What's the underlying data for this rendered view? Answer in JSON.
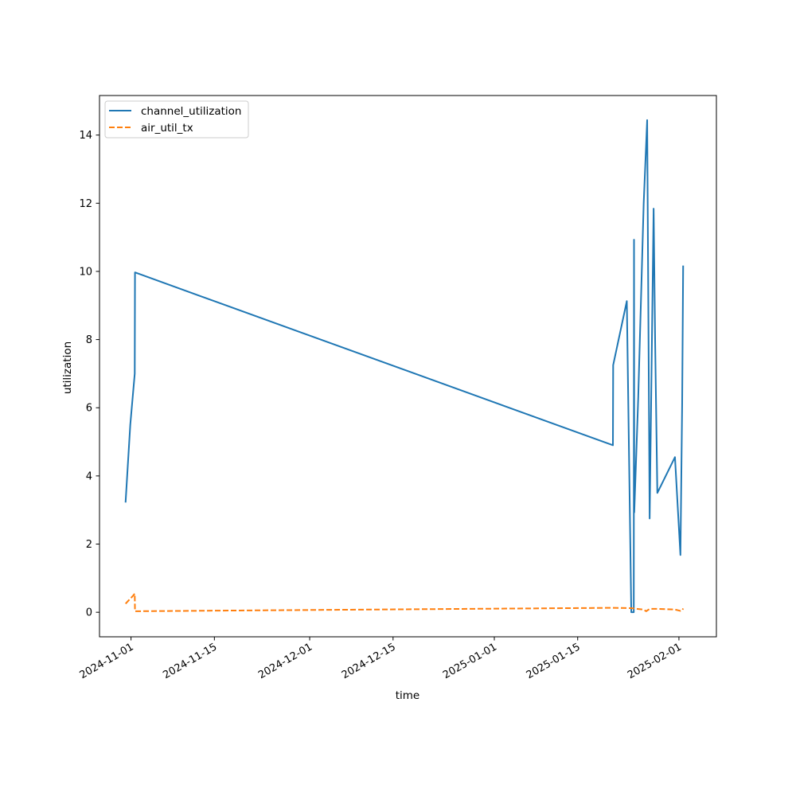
{
  "chart_data": {
    "type": "line",
    "title": "",
    "xlabel": "time",
    "ylabel": "utilization",
    "x_axis_type": "date",
    "xlim": [
      "2024-10-26T17:00",
      "2025-02-07T07:00"
    ],
    "ylim": [
      -0.72,
      15.16
    ],
    "x_ticks": [
      "2024-11-01",
      "2024-11-15",
      "2024-12-01",
      "2024-12-15",
      "2025-01-01",
      "2025-01-15",
      "2025-02-01"
    ],
    "x_tick_labels": [
      "2024-11-01",
      "2024-11-15",
      "2024-12-01",
      "2024-12-15",
      "2025-01-01",
      "2025-01-15",
      "2025-02-01"
    ],
    "y_ticks": [
      0,
      2,
      4,
      6,
      8,
      10,
      12,
      14
    ],
    "y_tick_labels": [
      "0",
      "2",
      "4",
      "6",
      "8",
      "10",
      "12",
      "14"
    ],
    "grid": false,
    "legend_position": "top-left",
    "series": [
      {
        "name": "channel_utilization",
        "color": "#1f77b4",
        "line_style": "solid",
        "points": [
          {
            "x": "2024-10-31T02:00",
            "y": 3.22
          },
          {
            "x": "2024-10-31T21:00",
            "y": 5.5
          },
          {
            "x": "2024-11-01T15:00",
            "y": 7.0
          },
          {
            "x": "2024-11-01T16:00",
            "y": 9.97
          },
          {
            "x": "2025-01-20T22:00",
            "y": 4.9
          },
          {
            "x": "2025-01-20T23:00",
            "y": 7.25
          },
          {
            "x": "2025-01-23T06:00",
            "y": 9.13
          },
          {
            "x": "2025-01-24T00:00",
            "y": 0.0
          },
          {
            "x": "2025-01-24T10:00",
            "y": 0.0
          },
          {
            "x": "2025-01-24T11:00",
            "y": 10.93
          },
          {
            "x": "2025-01-24T12:00",
            "y": 2.93
          },
          {
            "x": "2025-01-25T04:00",
            "y": 6.3
          },
          {
            "x": "2025-01-26T02:00",
            "y": 12.0
          },
          {
            "x": "2025-01-26T16:00",
            "y": 14.44
          },
          {
            "x": "2025-01-27T02:00",
            "y": 2.75
          },
          {
            "x": "2025-01-27T18:00",
            "y": 11.84
          },
          {
            "x": "2025-01-28T00:00",
            "y": 8.0
          },
          {
            "x": "2025-01-28T09:00",
            "y": 3.5
          },
          {
            "x": "2025-01-31T08:00",
            "y": 4.55
          },
          {
            "x": "2025-02-01T06:00",
            "y": 1.68
          },
          {
            "x": "2025-02-01T13:00",
            "y": 6.1
          },
          {
            "x": "2025-02-01T17:00",
            "y": 10.17
          }
        ]
      },
      {
        "name": "air_util_tx",
        "color": "#ff7f0e",
        "line_style": "dashed",
        "points": [
          {
            "x": "2024-10-31T02:00",
            "y": 0.25
          },
          {
            "x": "2024-11-01T10:00",
            "y": 0.5
          },
          {
            "x": "2024-11-01T15:00",
            "y": 0.55
          },
          {
            "x": "2024-11-01T16:00",
            "y": 0.03
          },
          {
            "x": "2025-01-20T22:00",
            "y": 0.13
          },
          {
            "x": "2025-01-24T00:00",
            "y": 0.12
          },
          {
            "x": "2025-01-26T00:00",
            "y": 0.08
          },
          {
            "x": "2025-01-26T12:00",
            "y": 0.03
          },
          {
            "x": "2025-01-27T02:00",
            "y": 0.1
          },
          {
            "x": "2025-01-28T09:00",
            "y": 0.1
          },
          {
            "x": "2025-01-31T08:00",
            "y": 0.08
          },
          {
            "x": "2025-02-01T06:00",
            "y": 0.04
          },
          {
            "x": "2025-02-01T13:00",
            "y": 0.05
          },
          {
            "x": "2025-02-01T17:00",
            "y": 0.11
          }
        ]
      }
    ]
  }
}
